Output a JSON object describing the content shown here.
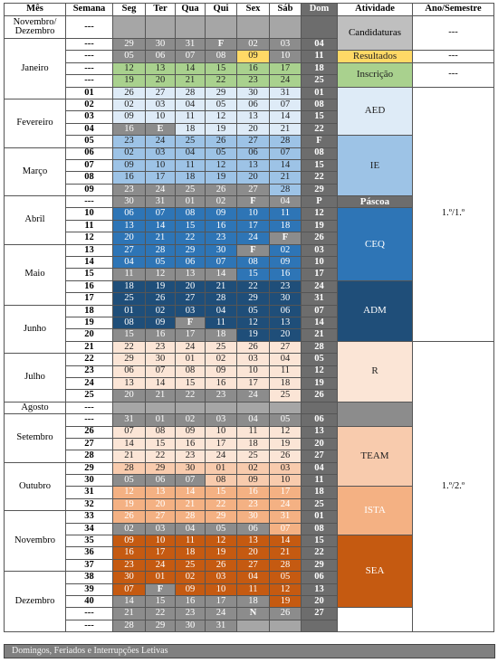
{
  "header": {
    "columns": [
      "Mês",
      "Semana",
      "Seg",
      "Ter",
      "Qua",
      "Qui",
      "Sex",
      "Sáb",
      "Dom",
      "Atividade",
      "Ano/Semestre"
    ]
  },
  "months": [
    {
      "name": "Novembro/ Dezembro",
      "weeks": [
        {
          "week": "---",
          "days": [
            null,
            null,
            null,
            null,
            null,
            null,
            null
          ]
        }
      ]
    },
    {
      "name": "Janeiro",
      "weeks": [
        {
          "week": "---",
          "days": [
            "29",
            "30",
            "31",
            "F",
            "02",
            "03",
            "04"
          ]
        },
        {
          "week": "---",
          "days": [
            "05",
            "06",
            "07",
            "08",
            "09",
            "10",
            "11"
          ]
        },
        {
          "week": "---",
          "days": [
            "12",
            "13",
            "14",
            "15",
            "16",
            "17",
            "18"
          ]
        },
        {
          "week": "---",
          "days": [
            "19",
            "20",
            "21",
            "22",
            "23",
            "24",
            "25"
          ]
        },
        {
          "week": "01",
          "days": [
            "26",
            "27",
            "28",
            "29",
            "30",
            "31",
            "01"
          ]
        }
      ]
    },
    {
      "name": "Fevereiro",
      "weeks": [
        {
          "week": "02",
          "days": [
            "02",
            "03",
            "04",
            "05",
            "06",
            "07",
            "08"
          ]
        },
        {
          "week": "03",
          "days": [
            "09",
            "10",
            "11",
            "12",
            "13",
            "14",
            "15"
          ]
        },
        {
          "week": "04",
          "days": [
            "16",
            "E",
            "18",
            "19",
            "20",
            "21",
            "22"
          ]
        },
        {
          "week": "05",
          "days": [
            "23",
            "24",
            "25",
            "26",
            "27",
            "28",
            "F"
          ]
        }
      ]
    },
    {
      "name": "Março",
      "weeks": [
        {
          "week": "06",
          "days": [
            "02",
            "03",
            "04",
            "05",
            "06",
            "07",
            "08"
          ]
        },
        {
          "week": "07",
          "days": [
            "09",
            "10",
            "11",
            "12",
            "13",
            "14",
            "15"
          ]
        },
        {
          "week": "08",
          "days": [
            "16",
            "17",
            "18",
            "19",
            "20",
            "21",
            "22"
          ]
        },
        {
          "week": "09",
          "days": [
            "23",
            "24",
            "25",
            "26",
            "27",
            "28",
            "29"
          ]
        }
      ]
    },
    {
      "name": "Abril",
      "weeks": [
        {
          "week": "---",
          "days": [
            "30",
            "31",
            "01",
            "02",
            "F",
            "04",
            "P"
          ]
        },
        {
          "week": "10",
          "days": [
            "06",
            "07",
            "08",
            "09",
            "10",
            "11",
            "12"
          ]
        },
        {
          "week": "11",
          "days": [
            "13",
            "14",
            "15",
            "16",
            "17",
            "18",
            "19"
          ]
        },
        {
          "week": "12",
          "days": [
            "20",
            "21",
            "22",
            "23",
            "24",
            "F",
            "26"
          ]
        }
      ]
    },
    {
      "name": "Maio",
      "weeks": [
        {
          "week": "13",
          "days": [
            "27",
            "28",
            "29",
            "30",
            "F",
            "02",
            "03"
          ]
        },
        {
          "week": "14",
          "days": [
            "04",
            "05",
            "06",
            "07",
            "08",
            "09",
            "10"
          ]
        },
        {
          "week": "15",
          "days": [
            "11",
            "12",
            "13",
            "14",
            "15",
            "16",
            "17"
          ]
        },
        {
          "week": "16",
          "days": [
            "18",
            "19",
            "20",
            "21",
            "22",
            "23",
            "24"
          ]
        },
        {
          "week": "17",
          "days": [
            "25",
            "26",
            "27",
            "28",
            "29",
            "30",
            "31"
          ]
        }
      ]
    },
    {
      "name": "Junho",
      "weeks": [
        {
          "week": "18",
          "days": [
            "01",
            "02",
            "03",
            "04",
            "05",
            "06",
            "07"
          ]
        },
        {
          "week": "19",
          "days": [
            "08",
            "09",
            "F",
            "11",
            "12",
            "13",
            "14"
          ]
        },
        {
          "week": "20",
          "days": [
            "15",
            "16",
            "17",
            "18",
            "19",
            "20",
            "21"
          ]
        },
        {
          "week": "21",
          "days": [
            "22",
            "23",
            "24",
            "25",
            "26",
            "27",
            "28"
          ]
        }
      ]
    },
    {
      "name": "Julho",
      "weeks": [
        {
          "week": "22",
          "days": [
            "29",
            "30",
            "01",
            "02",
            "03",
            "04",
            "05"
          ]
        },
        {
          "week": "23",
          "days": [
            "06",
            "07",
            "08",
            "09",
            "10",
            "11",
            "12"
          ]
        },
        {
          "week": "24",
          "days": [
            "13",
            "14",
            "15",
            "16",
            "17",
            "18",
            "19"
          ]
        },
        {
          "week": "25",
          "days": [
            "20",
            "21",
            "22",
            "23",
            "24",
            "25",
            "26"
          ]
        }
      ]
    },
    {
      "name": "Agosto",
      "weeks": [
        {
          "week": "---",
          "days": [
            null,
            null,
            null,
            null,
            null,
            null,
            null
          ]
        }
      ]
    },
    {
      "name": "Setembro",
      "weeks": [
        {
          "week": "---",
          "days": [
            "31",
            "01",
            "02",
            "03",
            "04",
            "05",
            "06"
          ]
        },
        {
          "week": "26",
          "days": [
            "07",
            "08",
            "09",
            "10",
            "11",
            "12",
            "13"
          ]
        },
        {
          "week": "27",
          "days": [
            "14",
            "15",
            "16",
            "17",
            "18",
            "19",
            "20"
          ]
        },
        {
          "week": "28",
          "days": [
            "21",
            "22",
            "23",
            "24",
            "25",
            "26",
            "27"
          ]
        }
      ]
    },
    {
      "name": "Outubro",
      "weeks": [
        {
          "week": "29",
          "days": [
            "28",
            "29",
            "30",
            "01",
            "02",
            "03",
            "04"
          ]
        },
        {
          "week": "30",
          "days": [
            "05",
            "06",
            "07",
            "08",
            "09",
            "10",
            "11"
          ]
        },
        {
          "week": "31",
          "days": [
            "12",
            "13",
            "14",
            "15",
            "16",
            "17",
            "18"
          ]
        },
        {
          "week": "32",
          "days": [
            "19",
            "20",
            "21",
            "22",
            "23",
            "24",
            "25"
          ]
        }
      ]
    },
    {
      "name": "Novembro",
      "weeks": [
        {
          "week": "33",
          "days": [
            "26",
            "27",
            "28",
            "29",
            "30",
            "31",
            "01"
          ]
        },
        {
          "week": "34",
          "days": [
            "02",
            "03",
            "04",
            "05",
            "06",
            "07",
            "08"
          ]
        },
        {
          "week": "35",
          "days": [
            "09",
            "10",
            "11",
            "12",
            "13",
            "14",
            "15"
          ]
        },
        {
          "week": "36",
          "days": [
            "16",
            "17",
            "18",
            "19",
            "20",
            "21",
            "22"
          ]
        },
        {
          "week": "37",
          "days": [
            "23",
            "24",
            "25",
            "26",
            "27",
            "28",
            "29"
          ]
        }
      ]
    },
    {
      "name": "Dezembro",
      "weeks": [
        {
          "week": "38",
          "days": [
            "30",
            "01",
            "02",
            "03",
            "04",
            "05",
            "06"
          ]
        },
        {
          "week": "39",
          "days": [
            "07",
            "F",
            "09",
            "10",
            "11",
            "12",
            "13"
          ]
        },
        {
          "week": "40",
          "days": [
            "14",
            "15",
            "16",
            "17",
            "18",
            "19",
            "20"
          ]
        },
        {
          "week": "---",
          "days": [
            "21",
            "22",
            "23",
            "24",
            "N",
            "26",
            "27"
          ]
        },
        {
          "week": "---",
          "days": [
            "28",
            "29",
            "30",
            "31",
            null,
            null,
            null
          ]
        }
      ]
    }
  ],
  "activities": [
    "Candidaturas",
    "Resultados",
    "Inscrição",
    "AED",
    "IE",
    "Páscoa",
    "CEQ",
    "ADM",
    "R",
    null,
    "TEAM",
    "ISTA",
    "SEA",
    null
  ],
  "semesters": [
    "---",
    "---",
    "---",
    "1.º/1.º",
    "1.º/2.º"
  ],
  "footer": {
    "legend": "Domingos, Feriados e Interrupções Letivas"
  }
}
